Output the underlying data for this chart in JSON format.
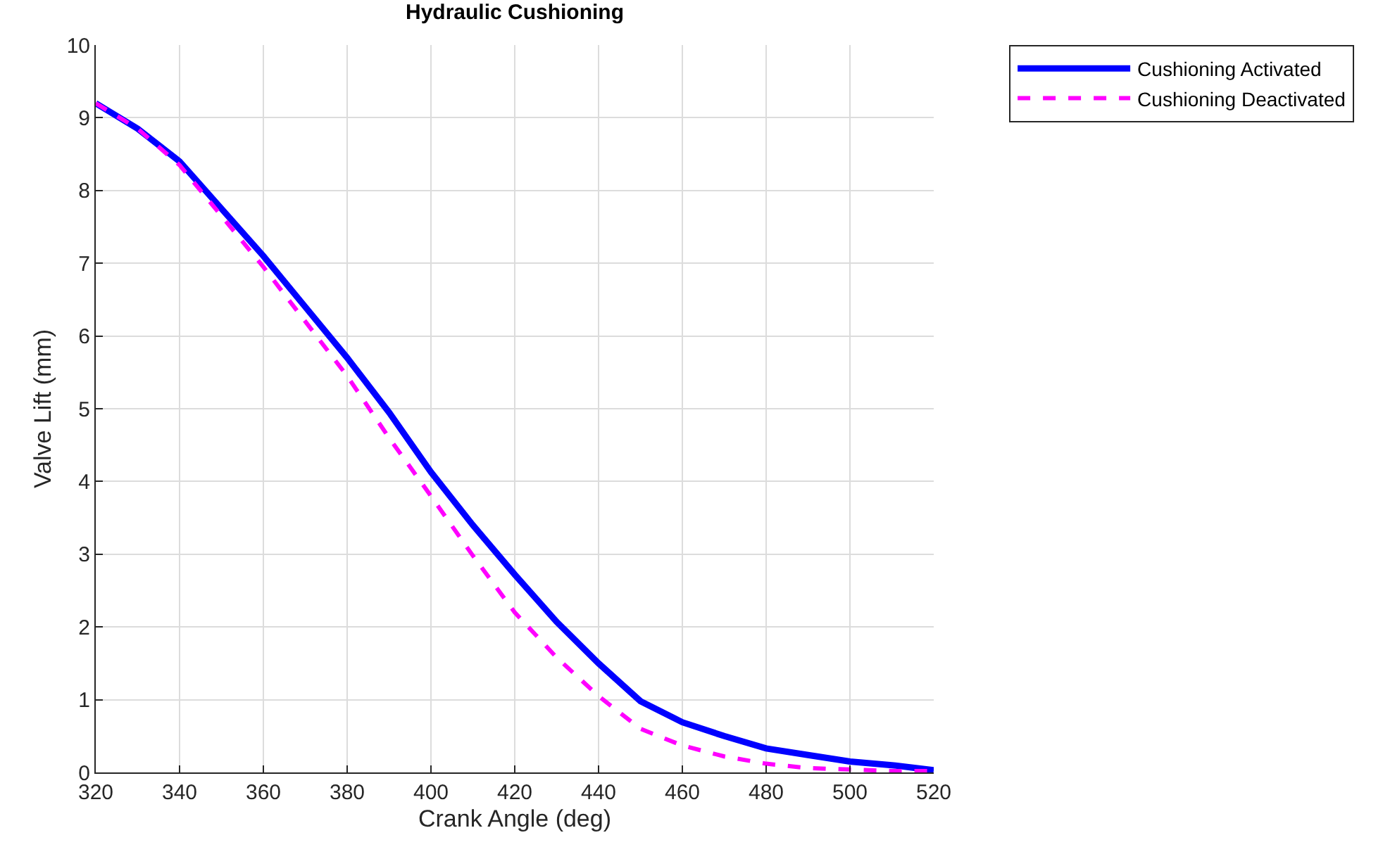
{
  "chart_data": {
    "type": "line",
    "title": "Hydraulic Cushioning",
    "xlabel": "Crank Angle (deg)",
    "ylabel": "Valve Lift (mm)",
    "x": [
      320,
      330,
      340,
      350,
      360,
      370,
      380,
      390,
      400,
      410,
      420,
      430,
      440,
      450,
      460,
      470,
      480,
      490,
      500,
      510,
      520
    ],
    "series": [
      {
        "name": "Cushioning Activated",
        "color": "#0000ff",
        "line_style": "solid",
        "values": [
          9.2,
          8.85,
          8.4,
          7.75,
          7.1,
          6.4,
          5.7,
          4.95,
          4.13,
          3.4,
          2.72,
          2.07,
          1.5,
          0.98,
          0.69,
          0.5,
          0.33,
          0.24,
          0.15,
          0.1,
          0.03
        ]
      },
      {
        "name": "Cushioning Deactivated",
        "color": "#ff00ff",
        "line_style": "dashed",
        "values": [
          9.2,
          8.85,
          8.35,
          7.65,
          6.95,
          6.2,
          5.45,
          4.6,
          3.8,
          2.98,
          2.2,
          1.58,
          1.05,
          0.6,
          0.37,
          0.22,
          0.12,
          0.06,
          0.04,
          0.02,
          0.02
        ]
      }
    ],
    "xlim": [
      320,
      520
    ],
    "xticks": [
      320,
      340,
      360,
      380,
      400,
      420,
      440,
      460,
      480,
      500,
      520
    ],
    "ylim": [
      0,
      10
    ],
    "yticks": [
      0,
      1,
      2,
      3,
      4,
      5,
      6,
      7,
      8,
      9,
      10
    ],
    "grid": true,
    "legend": "top right",
    "marker": "none"
  }
}
